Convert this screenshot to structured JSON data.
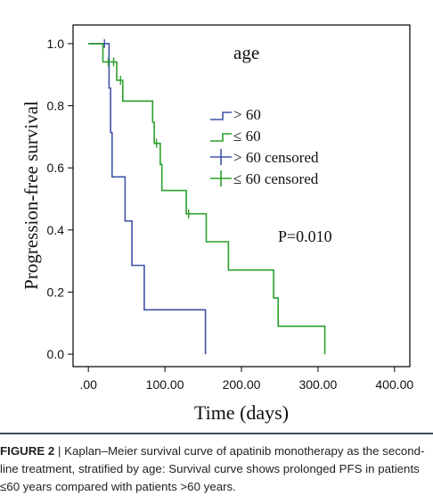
{
  "chart_data": {
    "type": "line",
    "subtype": "kaplan-meier step",
    "xlabel": "Time (days)",
    "ylabel": "Progression-free survival",
    "xlim": [
      -20,
      420
    ],
    "ylim": [
      -0.04,
      1.06
    ],
    "x_ticks": [
      0,
      100,
      200,
      300,
      400
    ],
    "x_tick_labels": [
      ".00",
      "100.00",
      "200.00",
      "300.00",
      "400.00"
    ],
    "y_ticks": [
      0,
      0.2,
      0.4,
      0.6,
      0.8,
      1.0
    ],
    "y_tick_labels": [
      "0.0",
      "0.2",
      "0.4",
      "0.6",
      "0.8",
      "1.0"
    ],
    "legend_title": "age",
    "legend_position": "upper-right",
    "annotation": "P=0.010",
    "grid": false,
    "series": [
      {
        "name": "> 60",
        "color": "#3f53a8",
        "steps": [
          [
            0,
            1.0
          ],
          [
            27,
            1.0
          ],
          [
            27,
            0.857
          ],
          [
            29,
            0.857
          ],
          [
            29,
            0.714
          ],
          [
            31,
            0.714
          ],
          [
            31,
            0.571
          ],
          [
            48,
            0.571
          ],
          [
            48,
            0.429
          ],
          [
            57,
            0.429
          ],
          [
            57,
            0.286
          ],
          [
            73,
            0.286
          ],
          [
            73,
            0.143
          ],
          [
            153,
            0.143
          ],
          [
            153,
            0.0
          ]
        ],
        "censored": [
          [
            21,
            1.0
          ]
        ]
      },
      {
        "name": "≤ 60",
        "color": "#2ca02c",
        "steps": [
          [
            0,
            1.0
          ],
          [
            19,
            1.0
          ],
          [
            19,
            0.941
          ],
          [
            37,
            0.941
          ],
          [
            37,
            0.882
          ],
          [
            45,
            0.882
          ],
          [
            45,
            0.815
          ],
          [
            84,
            0.815
          ],
          [
            84,
            0.747
          ],
          [
            86,
            0.747
          ],
          [
            86,
            0.679
          ],
          [
            94,
            0.679
          ],
          [
            94,
            0.611
          ],
          [
            96,
            0.611
          ],
          [
            96,
            0.527
          ],
          [
            128,
            0.527
          ],
          [
            128,
            0.452
          ],
          [
            154,
            0.452
          ],
          [
            154,
            0.362
          ],
          [
            183,
            0.362
          ],
          [
            183,
            0.271
          ],
          [
            242,
            0.271
          ],
          [
            242,
            0.181
          ],
          [
            248,
            0.181
          ],
          [
            248,
            0.09
          ],
          [
            309,
            0.09
          ],
          [
            309,
            0.0
          ]
        ],
        "censored": [
          [
            26,
            0.941
          ],
          [
            33,
            0.941
          ],
          [
            42,
            0.882
          ],
          [
            89,
            0.679
          ],
          [
            131,
            0.452
          ]
        ]
      }
    ],
    "legend_entries": [
      {
        "label": "> 60",
        "kind": "line",
        "color": "#3f53a8"
      },
      {
        "label": "≤ 60",
        "kind": "line",
        "color": "#2ca02c"
      },
      {
        "label": "> 60 censored",
        "kind": "censored",
        "color": "#3f53a8"
      },
      {
        "label": "≤ 60 censored",
        "kind": "censored",
        "color": "#2ca02c"
      }
    ]
  },
  "caption": {
    "label": "FIGURE 2",
    "separator": " | ",
    "text": "Kaplan–Meier survival curve of apatinib monotherapy as the second-line treatment, stratified by age: Survival curve shows prolonged PFS in patients ≤60 years compared with patients >60 years."
  }
}
